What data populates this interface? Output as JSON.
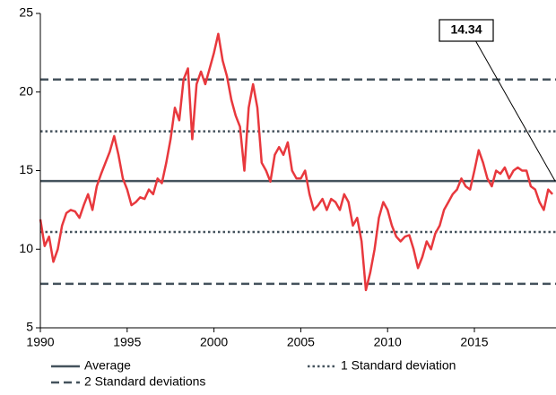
{
  "chart_data": {
    "type": "line",
    "x": [
      1990.0,
      1990.25,
      1990.5,
      1990.75,
      1991.0,
      1991.25,
      1991.5,
      1991.75,
      1992.0,
      1992.25,
      1992.5,
      1992.75,
      1993.0,
      1993.25,
      1993.5,
      1993.75,
      1994.0,
      1994.25,
      1994.5,
      1994.75,
      1995.0,
      1995.25,
      1995.5,
      1995.75,
      1996.0,
      1996.25,
      1996.5,
      1996.75,
      1997.0,
      1997.25,
      1997.5,
      1997.75,
      1998.0,
      1998.25,
      1998.5,
      1998.75,
      1999.0,
      1999.25,
      1999.5,
      1999.75,
      2000.0,
      2000.25,
      2000.5,
      2000.75,
      2001.0,
      2001.25,
      2001.5,
      2001.75,
      2002.0,
      2002.25,
      2002.5,
      2002.75,
      2003.0,
      2003.25,
      2003.5,
      2003.75,
      2004.0,
      2004.25,
      2004.5,
      2004.75,
      2005.0,
      2005.25,
      2005.5,
      2005.75,
      2006.0,
      2006.25,
      2006.5,
      2006.75,
      2007.0,
      2007.25,
      2007.5,
      2007.75,
      2008.0,
      2008.25,
      2008.5,
      2008.75,
      2009.0,
      2009.25,
      2009.5,
      2009.75,
      2010.0,
      2010.25,
      2010.5,
      2010.75,
      2011.0,
      2011.25,
      2011.5,
      2011.75,
      2012.0,
      2012.25,
      2012.5,
      2012.75,
      2013.0,
      2013.25,
      2013.5,
      2013.75,
      2014.0,
      2014.25,
      2014.5,
      2014.75,
      2015.0,
      2015.25,
      2015.5,
      2015.75,
      2016.0,
      2016.25,
      2016.5,
      2016.75,
      2017.0,
      2017.25,
      2017.5,
      2017.75,
      2018.0,
      2018.25,
      2018.5,
      2018.75,
      2019.0,
      2019.25,
      2019.5
    ],
    "series": [
      {
        "color": "#e8383d",
        "values": [
          11.9,
          10.2,
          10.8,
          9.2,
          10.0,
          11.5,
          12.3,
          12.5,
          12.4,
          12.0,
          12.8,
          13.5,
          12.5,
          14.0,
          14.8,
          15.5,
          16.2,
          17.2,
          16.0,
          14.5,
          13.8,
          12.8,
          13.0,
          13.3,
          13.2,
          13.8,
          13.5,
          14.5,
          14.2,
          15.5,
          17.0,
          19.0,
          18.2,
          20.8,
          21.5,
          17.0,
          20.5,
          21.3,
          20.5,
          21.5,
          22.5,
          23.7,
          22.0,
          21.0,
          19.5,
          18.5,
          17.8,
          15.0,
          19.0,
          20.5,
          19.0,
          15.5,
          15.0,
          14.3,
          16.0,
          16.5,
          16.0,
          16.8,
          15.0,
          14.5,
          14.5,
          15.0,
          13.5,
          12.5,
          12.8,
          13.2,
          12.5,
          13.2,
          13.0,
          12.5,
          13.5,
          13.0,
          11.5,
          12.0,
          10.5,
          7.4,
          8.5,
          10.0,
          12.0,
          13.0,
          12.5,
          11.5,
          10.8,
          10.5,
          10.8,
          10.9,
          10.0,
          8.8,
          9.5,
          10.5,
          10.0,
          11.0,
          11.5,
          12.5,
          13.0,
          13.5,
          13.8,
          14.5,
          14.0,
          13.8,
          15.0,
          16.3,
          15.5,
          14.5,
          14.0,
          15.0,
          14.8,
          15.2,
          14.5,
          15.0,
          15.2,
          15.0,
          15.0,
          14.0,
          13.8,
          13.0,
          12.5,
          13.8,
          13.5
        ]
      }
    ],
    "reference_lines": [
      {
        "name": "Average",
        "value": 14.34,
        "style": "solid",
        "color": "#44525c"
      },
      {
        "name": "2 Standard deviations",
        "value": 20.8,
        "style": "dashed",
        "color": "#44525c"
      },
      {
        "value": 7.8,
        "style": "dashed",
        "color": "#44525c"
      },
      {
        "name": "1 Standard deviation",
        "value": 17.5,
        "style": "dotted",
        "color": "#44525c"
      },
      {
        "value": 11.1,
        "style": "dotted",
        "color": "#44525c"
      }
    ],
    "xlim": [
      1990,
      2019.7
    ],
    "xticks": [
      1990,
      1995,
      2000,
      2005,
      2010,
      2015
    ],
    "ylim": [
      5,
      25
    ],
    "yticks": [
      5,
      10,
      15,
      20,
      25
    ]
  }
}
